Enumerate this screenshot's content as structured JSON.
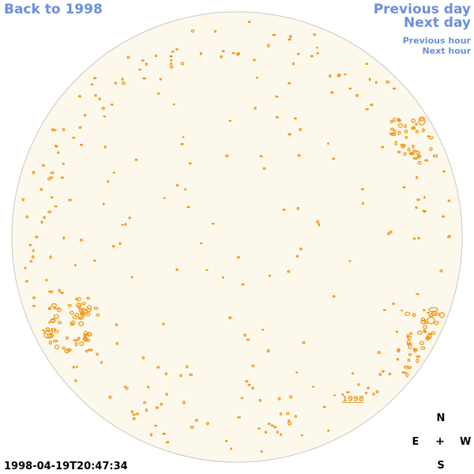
{
  "nav": {
    "back_label": "Back to 1998",
    "prev_day_label": "Previous day",
    "next_day_label": "Next day",
    "prev_hour_label": "Previous hour",
    "next_hour_label": "Next hour"
  },
  "image": {
    "timestamp": "1998-04-19T20:47:34",
    "year_label": "1998"
  },
  "compass": {
    "north": "N",
    "south": "S",
    "east": "E",
    "west": "W",
    "center": "+"
  },
  "colors": {
    "link": "#6b8fdc",
    "disk_fill": "#fdf8ec",
    "disk_edge": "#c8c8c8",
    "contour": "#f0920a",
    "year_label": "#e8a040"
  }
}
